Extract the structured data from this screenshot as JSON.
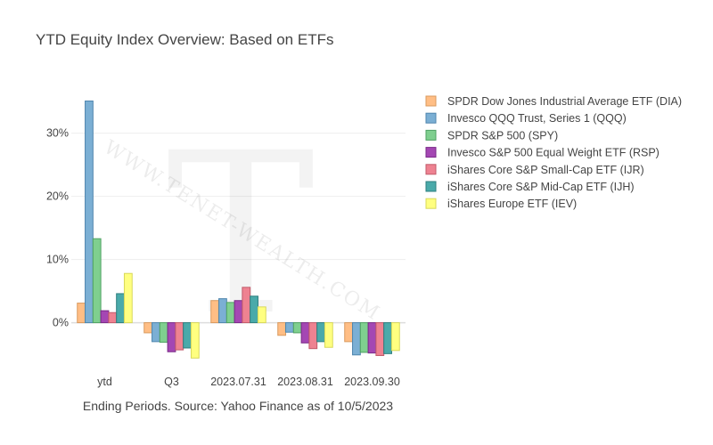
{
  "chart_data": {
    "type": "bar",
    "title": "YTD Equity Index Overview: Based on ETFs",
    "xlabel": "Ending Periods. Source: Yahoo Finance as of 10/5/2023",
    "ylabel": "",
    "categories": [
      "ytd",
      "Q3",
      "2023.07.31",
      "2023.08.31",
      "2023.09.30"
    ],
    "ylim": [
      -0.095,
      0.37
    ],
    "yticks": [
      {
        "value": 0.0,
        "label": "0%"
      },
      {
        "value": 0.1,
        "label": "10%"
      },
      {
        "value": 0.2,
        "label": "20%"
      },
      {
        "value": 0.3,
        "label": "30%"
      }
    ],
    "grid": true,
    "legend_position": "right",
    "series": [
      {
        "name": "SPDR Dow Jones Industrial Average ETF (DIA)",
        "color": "#FFBE85",
        "stroke": "#D99A5E",
        "values": [
          0.031,
          -0.016,
          0.035,
          -0.02,
          -0.03
        ]
      },
      {
        "name": "Invesco QQQ Trust, Series 1 (QQQ)",
        "color": "#7BAFD4",
        "stroke": "#4F86AE",
        "values": [
          0.351,
          -0.03,
          0.038,
          -0.015,
          -0.051
        ]
      },
      {
        "name": "SPDR S&P 500 (SPY)",
        "color": "#7FCF8F",
        "stroke": "#4FA263",
        "values": [
          0.133,
          -0.031,
          0.032,
          -0.016,
          -0.047
        ]
      },
      {
        "name": "Invesco S&P 500 Equal Weight ETF (RSP)",
        "color": "#A447B3",
        "stroke": "#7A2A88",
        "values": [
          0.019,
          -0.046,
          0.035,
          -0.032,
          -0.048
        ]
      },
      {
        "name": "iShares Core S&P Small-Cap ETF (IJR)",
        "color": "#EE8291",
        "stroke": "#C25A6A",
        "values": [
          0.016,
          -0.043,
          0.056,
          -0.041,
          -0.052
        ]
      },
      {
        "name": "iShares Core S&P Mid-Cap ETF (IJH)",
        "color": "#4AAAAA",
        "stroke": "#2E7F7F",
        "values": [
          0.046,
          -0.04,
          0.042,
          -0.03,
          -0.049
        ]
      },
      {
        "name": "iShares Europe ETF (IEV)",
        "color": "#FFFF80",
        "stroke": "#D8D85A",
        "values": [
          0.078,
          -0.056,
          0.025,
          -0.039,
          -0.044
        ]
      }
    ]
  },
  "watermark": {
    "letter": "T",
    "text": "WWW.TENET-WEALTH.COM"
  }
}
